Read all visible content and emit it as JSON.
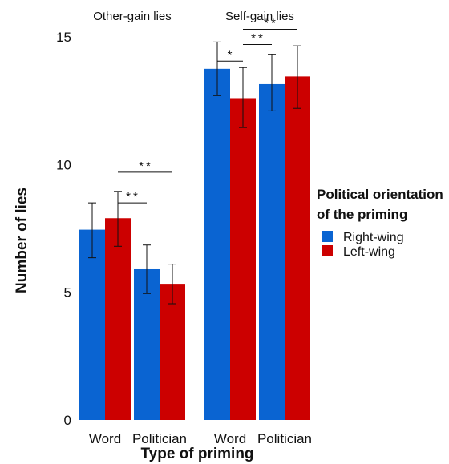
{
  "chart_data": {
    "type": "bar",
    "ylabel": "Number of lies",
    "xlabel": "Type of priming",
    "ylim": [
      0,
      15
    ],
    "yticks": [
      0,
      5,
      10,
      15
    ],
    "grid": false,
    "legend": {
      "title_lines": [
        "Political orientation",
        "of the priming"
      ],
      "placement": "right",
      "entries": [
        {
          "name": "Right-wing",
          "color": "#0a64d2"
        },
        {
          "name": "Left-wing",
          "color": "#cc0000"
        }
      ]
    },
    "panels": [
      {
        "title": "Other-gain lies",
        "categories": [
          "Word",
          "Politician"
        ],
        "series": [
          {
            "name": "Right-wing",
            "values": [
              7.45,
              5.9
            ],
            "err_low": [
              6.35,
              4.95
            ],
            "err_high": [
              8.5,
              6.85
            ]
          },
          {
            "name": "Left-wing",
            "values": [
              7.9,
              5.3
            ],
            "err_low": [
              6.8,
              4.55
            ],
            "err_high": [
              8.95,
              6.1
            ]
          }
        ],
        "significance": [
          {
            "label": "**",
            "from": "Word:Left-wing",
            "to": "Politician:Right-wing",
            "y": 8.5
          },
          {
            "label": "**",
            "from": "Word:Left-wing",
            "to": "Politician:Left-wing",
            "y": 9.7
          }
        ]
      },
      {
        "title": "Self-gain lies",
        "categories": [
          "Word",
          "Politician"
        ],
        "series": [
          {
            "name": "Right-wing",
            "values": [
              13.75,
              13.15
            ],
            "err_low": [
              12.7,
              12.1
            ],
            "err_high": [
              14.8,
              14.3
            ]
          },
          {
            "name": "Left-wing",
            "values": [
              12.6,
              13.45
            ],
            "err_low": [
              11.45,
              12.2
            ],
            "err_high": [
              13.8,
              14.65
            ]
          }
        ],
        "significance": [
          {
            "label": "*",
            "from": "Word:Right-wing",
            "to": "Word:Left-wing",
            "y": 14.05
          },
          {
            "label": "**",
            "from": "Word:Left-wing",
            "to": "Politician:Right-wing",
            "y": 14.7
          },
          {
            "label": "**",
            "from": "Word:Left-wing",
            "to": "Politician:Left-wing",
            "y": 15.3
          }
        ]
      }
    ]
  }
}
